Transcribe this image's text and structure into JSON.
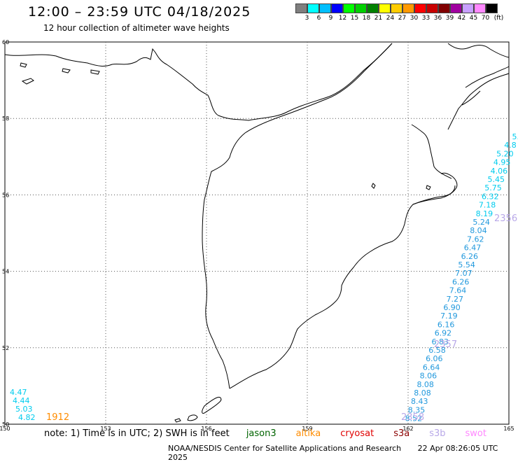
{
  "title": "12:00 – 23:59 UTC 04/18/2025",
  "subtitle": "12 hour collection of altimeter wave heights",
  "legend": {
    "colors": [
      "#7f7f7f",
      "#00ffff",
      "#00bfff",
      "#0000ff",
      "#00ff00",
      "#00d000",
      "#008000",
      "#ffff00",
      "#ffcc00",
      "#ff9900",
      "#ff0000",
      "#c80000",
      "#800000",
      "#a000a0",
      "#c8a0ff",
      "#ff88ff",
      "#000000"
    ],
    "labels": [
      "3",
      "6",
      "9",
      "12",
      "15",
      "18",
      "21",
      "24",
      "27",
      "30",
      "33",
      "36",
      "39",
      "42",
      "45",
      "70"
    ],
    "unit": "(ft)"
  },
  "map": {
    "lat_labels": [
      "60",
      "58",
      "56",
      "54",
      "52",
      "50"
    ],
    "lon_labels": [
      "150",
      "153",
      "156",
      "159",
      "162",
      "165"
    ],
    "track_colors": {
      "cyan": "#00ccee",
      "blue": "#2299dd",
      "lavender": "#b8a8e8",
      "orange": "#ff8c00"
    },
    "track_a": [
      "5.",
      "4.8",
      "5.20",
      "4.95",
      "4.06",
      "5.45",
      "5.75",
      "6.32",
      "7.18",
      "8.19",
      "5.24",
      "8.04",
      "7.62",
      "6.47",
      "6.26",
      "5.54",
      "7.07",
      "6.26",
      "7.64",
      "7.27",
      "6.90",
      "7.19",
      "6.16",
      "6.92",
      "6.83",
      "6.58",
      "6.06",
      "6.64",
      "8.06",
      "8.08",
      "8.08",
      "8.43",
      "8.35",
      "8.52"
    ],
    "track_b": [
      "4.47",
      "4.44",
      "5.03",
      "4.82"
    ],
    "pass_labels": [
      "2356",
      "2357",
      "2358",
      "1912"
    ]
  },
  "note": {
    "text": "note:  1) Time is in UTC;  2) SWH is in feet",
    "sats": [
      {
        "name": "jason3",
        "color": "#006400"
      },
      {
        "name": "altika",
        "color": "#ff8c00"
      },
      {
        "name": "cryosat",
        "color": "#e00000"
      },
      {
        "name": "s3a",
        "color": "#8b0000"
      },
      {
        "name": "s3b",
        "color": "#b8a8e8"
      },
      {
        "name": "swot",
        "color": "#ff88ff"
      }
    ]
  },
  "footer": {
    "org": "NOAA/NESDIS Center for Satellite Applications and Research",
    "timestamp": "22 Apr 08:26:05 UTC 2025"
  }
}
